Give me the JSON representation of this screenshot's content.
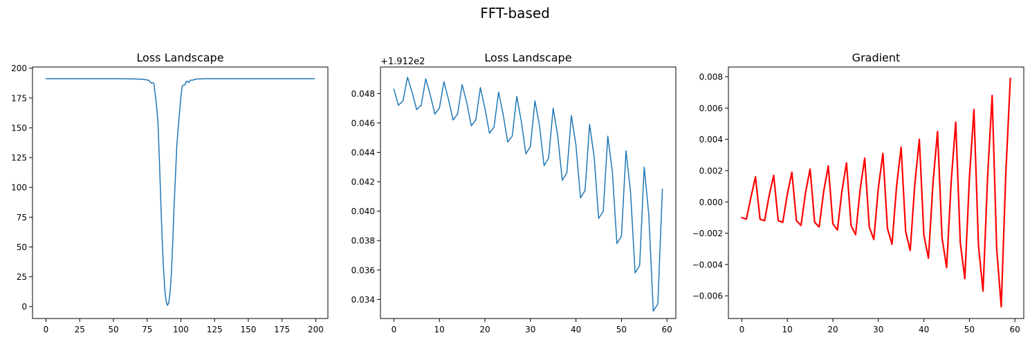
{
  "figure": {
    "suptitle": "FFT-based"
  },
  "chart_data": [
    {
      "type": "line",
      "title": "Loss  Landscape",
      "xlabel": "",
      "ylabel": "",
      "xlim": [
        -10,
        209
      ],
      "ylim": [
        -10,
        201
      ],
      "xticks": [
        0,
        25,
        50,
        75,
        100,
        125,
        150,
        175,
        200
      ],
      "yticks": [
        0,
        25,
        50,
        75,
        100,
        125,
        150,
        175,
        200
      ],
      "offset_text": "",
      "grid": false,
      "series": [
        {
          "color": "#1f77b4",
          "linewidth": 1.5,
          "x": [
            0,
            10,
            20,
            30,
            40,
            50,
            55,
            60,
            62,
            64,
            66,
            68,
            70,
            71,
            72,
            73,
            74,
            75,
            76,
            77,
            78,
            79,
            80,
            81,
            82,
            83,
            84,
            85,
            86,
            87,
            88,
            89,
            90,
            91,
            92,
            93,
            94,
            95,
            96,
            97,
            98,
            99,
            100,
            101,
            102,
            103,
            104,
            105,
            106,
            107,
            108,
            109,
            110,
            112,
            114,
            116,
            118,
            120,
            125,
            130,
            140,
            150,
            160,
            170,
            180,
            190,
            199
          ],
          "y": [
            191.2,
            191.2,
            191.2,
            191.2,
            191.2,
            191.2,
            191.2,
            191.1,
            191.1,
            191.0,
            191.0,
            190.8,
            190.9,
            190.7,
            190.8,
            190.3,
            190.6,
            189.8,
            190.1,
            188.8,
            187.5,
            188.0,
            187.2,
            178,
            168,
            155,
            125,
            92,
            60,
            35,
            15,
            5,
            1,
            3,
            12,
            28,
            55,
            85,
            110,
            135,
            150,
            163,
            176,
            185,
            186,
            186,
            189,
            189,
            188,
            190,
            190,
            190,
            190.5,
            191,
            191,
            191.1,
            191.2,
            191.2,
            191.2,
            191.2,
            191.2,
            191.2,
            191.2,
            191.2,
            191.2,
            191.2,
            191.2
          ]
        }
      ]
    },
    {
      "type": "line",
      "title": "Loss  Landscape",
      "xlabel": "",
      "ylabel": "",
      "xlim": [
        -2.95,
        61.95
      ],
      "ylim": [
        0.0327,
        0.0498
      ],
      "xticks": [
        0,
        10,
        20,
        30,
        40,
        50,
        60
      ],
      "yticks": [
        0.034,
        0.036,
        0.038,
        0.04,
        0.042,
        0.044,
        0.046,
        0.048
      ],
      "offset_text": "+1.912e2",
      "grid": false,
      "series": [
        {
          "color": "#1f77b4",
          "linewidth": 1.5,
          "x": [
            0,
            1,
            2,
            3,
            4,
            5,
            6,
            7,
            8,
            9,
            10,
            11,
            12,
            13,
            14,
            15,
            16,
            17,
            18,
            19,
            20,
            21,
            22,
            23,
            24,
            25,
            26,
            27,
            28,
            29,
            30,
            31,
            32,
            33,
            34,
            35,
            36,
            37,
            38,
            39,
            40,
            41,
            42,
            43,
            44,
            45,
            46,
            47,
            48,
            49,
            50,
            51,
            52,
            53,
            54,
            55,
            56,
            57,
            58,
            59
          ],
          "y": [
            0.0483,
            0.0472,
            0.0475,
            0.0491,
            0.0481,
            0.0469,
            0.0472,
            0.049,
            0.0479,
            0.0466,
            0.047,
            0.0488,
            0.0476,
            0.0462,
            0.0466,
            0.0486,
            0.0474,
            0.0458,
            0.0462,
            0.0484,
            0.047,
            0.0453,
            0.0457,
            0.0481,
            0.0466,
            0.0447,
            0.0451,
            0.0478,
            0.0461,
            0.0439,
            0.0444,
            0.0475,
            0.0458,
            0.0431,
            0.0436,
            0.047,
            0.0451,
            0.0421,
            0.0426,
            0.0465,
            0.0445,
            0.0409,
            0.0414,
            0.0459,
            0.0437,
            0.0395,
            0.04,
            0.0451,
            0.0427,
            0.0378,
            0.0383,
            0.0441,
            0.0413,
            0.0358,
            0.0363,
            0.043,
            0.0398,
            0.0332,
            0.0337,
            0.0415
          ]
        }
      ]
    },
    {
      "type": "line",
      "title": "Gradient",
      "xlabel": "",
      "ylabel": "",
      "xlim": [
        -2.95,
        61.95
      ],
      "ylim": [
        -0.00745,
        0.00862
      ],
      "xticks": [
        0,
        10,
        20,
        30,
        40,
        50,
        60
      ],
      "yticks": [
        -0.006,
        -0.004,
        -0.002,
        0.0,
        0.002,
        0.004,
        0.006,
        0.008
      ],
      "offset_text": "",
      "grid": false,
      "series": [
        {
          "color": "#ff0000",
          "linewidth": 2.2,
          "x": [
            0,
            1,
            2,
            3,
            4,
            5,
            6,
            7,
            8,
            9,
            10,
            11,
            12,
            13,
            14,
            15,
            16,
            17,
            18,
            19,
            20,
            21,
            22,
            23,
            24,
            25,
            26,
            27,
            28,
            29,
            30,
            31,
            32,
            33,
            34,
            35,
            36,
            37,
            38,
            39,
            40,
            41,
            42,
            43,
            44,
            45,
            46,
            47,
            48,
            49,
            50,
            51,
            52,
            53,
            54,
            55,
            56,
            57,
            58,
            59
          ],
          "y": [
            -0.001,
            -0.0011,
            0.0003,
            0.0016,
            -0.0011,
            -0.0012,
            0.0004,
            0.0017,
            -0.0012,
            -0.0013,
            0.0005,
            0.0019,
            -0.0012,
            -0.0015,
            0.0006,
            0.0021,
            -0.0013,
            -0.0016,
            0.0007,
            0.0023,
            -0.0014,
            -0.0018,
            0.0007,
            0.0025,
            -0.0015,
            -0.0021,
            0.0008,
            0.0028,
            -0.0016,
            -0.0024,
            0.0009,
            0.0031,
            -0.0017,
            -0.0027,
            0.001,
            0.0035,
            -0.0019,
            -0.0031,
            0.0011,
            0.004,
            -0.0021,
            -0.0036,
            0.0012,
            0.0045,
            -0.0023,
            -0.0042,
            0.0013,
            0.0051,
            -0.0026,
            -0.0049,
            0.0015,
            0.0059,
            -0.0028,
            -0.0057,
            0.0016,
            0.0068,
            -0.003,
            -0.0067,
            0.0018,
            0.0079
          ]
        }
      ]
    }
  ]
}
